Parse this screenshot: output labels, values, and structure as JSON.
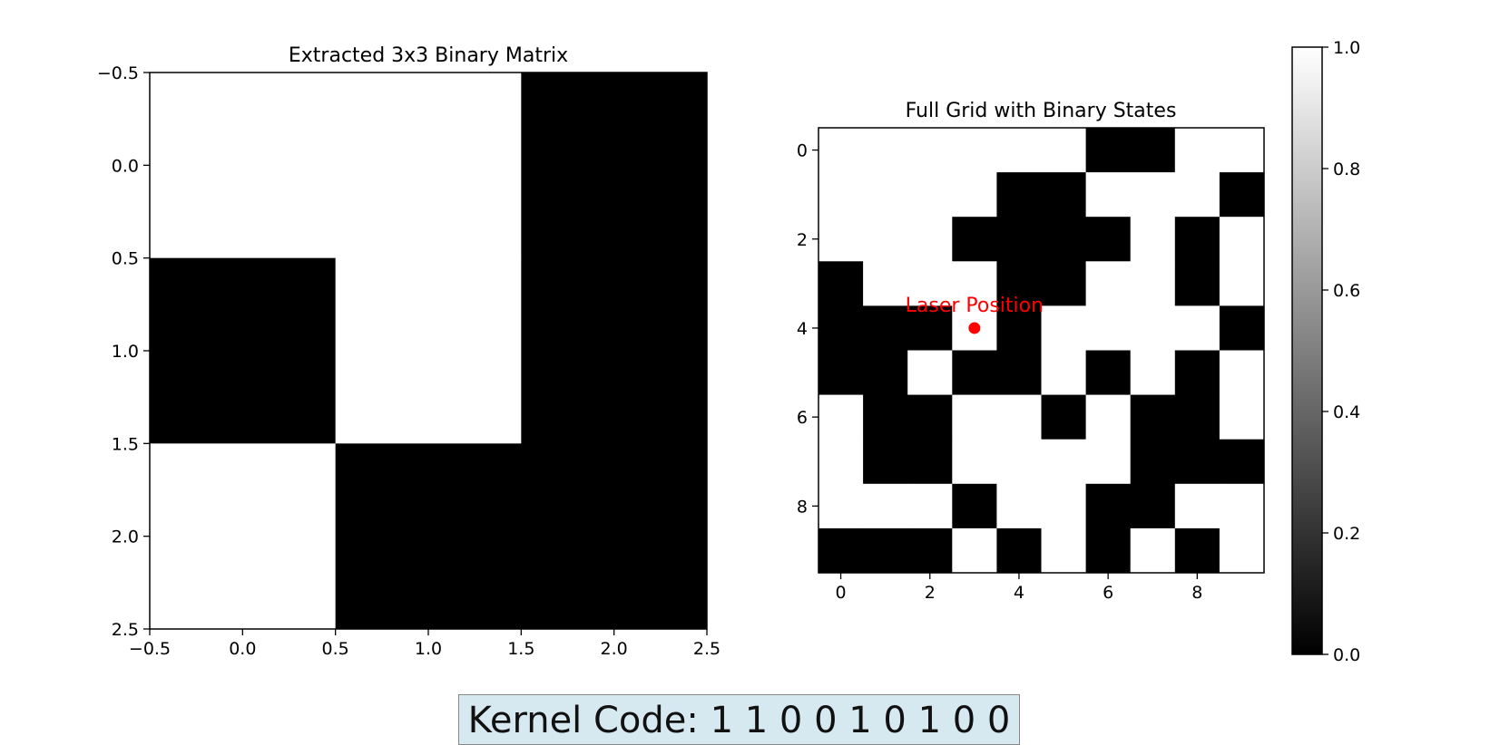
{
  "chart_data": [
    {
      "type": "heatmap",
      "title": "Extracted 3x3 Binary Matrix",
      "xlabel": "",
      "ylabel": "",
      "x_ticks": [
        "−0.5",
        "0.0",
        "0.5",
        "1.0",
        "1.5",
        "2.0",
        "2.5"
      ],
      "y_ticks": [
        "−0.5",
        "0.0",
        "0.5",
        "1.0",
        "1.5",
        "2.0",
        "2.5"
      ],
      "xlim": [
        -0.5,
        2.5
      ],
      "ylim": [
        2.5,
        -0.5
      ],
      "colormap": "gray",
      "matrix": [
        [
          1,
          1,
          0
        ],
        [
          0,
          1,
          0
        ],
        [
          1,
          0,
          0
        ]
      ]
    },
    {
      "type": "heatmap",
      "title": "Full Grid with Binary States",
      "xlabel": "",
      "ylabel": "",
      "x_ticks": [
        "0",
        "2",
        "4",
        "6",
        "8"
      ],
      "y_ticks": [
        "0",
        "2",
        "4",
        "6",
        "8"
      ],
      "xlim": [
        -0.5,
        9.5
      ],
      "ylim": [
        9.5,
        -0.5
      ],
      "colormap": "gray",
      "matrix": [
        [
          1,
          1,
          1,
          1,
          1,
          1,
          0,
          0,
          1,
          1
        ],
        [
          1,
          1,
          1,
          1,
          0,
          0,
          1,
          1,
          1,
          0
        ],
        [
          1,
          1,
          1,
          0,
          0,
          0,
          0,
          1,
          0,
          1
        ],
        [
          0,
          1,
          1,
          1,
          0,
          0,
          1,
          1,
          0,
          1
        ],
        [
          0,
          0,
          0,
          1,
          0,
          1,
          1,
          1,
          1,
          0
        ],
        [
          0,
          0,
          1,
          0,
          0,
          1,
          0,
          1,
          0,
          1
        ],
        [
          1,
          0,
          0,
          1,
          1,
          0,
          1,
          0,
          0,
          1
        ],
        [
          1,
          0,
          0,
          1,
          1,
          1,
          1,
          0,
          0,
          0
        ],
        [
          1,
          1,
          1,
          0,
          1,
          1,
          0,
          0,
          1,
          1
        ],
        [
          0,
          0,
          0,
          1,
          0,
          1,
          0,
          1,
          0,
          1
        ]
      ],
      "annotation": {
        "text": "Laser Position",
        "x": 3,
        "y": 4,
        "color": "#ff0000"
      }
    }
  ],
  "colorbar": {
    "ticks": [
      "0.0",
      "0.2",
      "0.4",
      "0.6",
      "0.8",
      "1.0"
    ],
    "tick_values": [
      0.0,
      0.2,
      0.4,
      0.6,
      0.8,
      1.0
    ],
    "range": [
      0.0,
      1.0
    ]
  },
  "kernel_code": "Kernel Code: 1 1 0 0 1 0 1 0 0"
}
